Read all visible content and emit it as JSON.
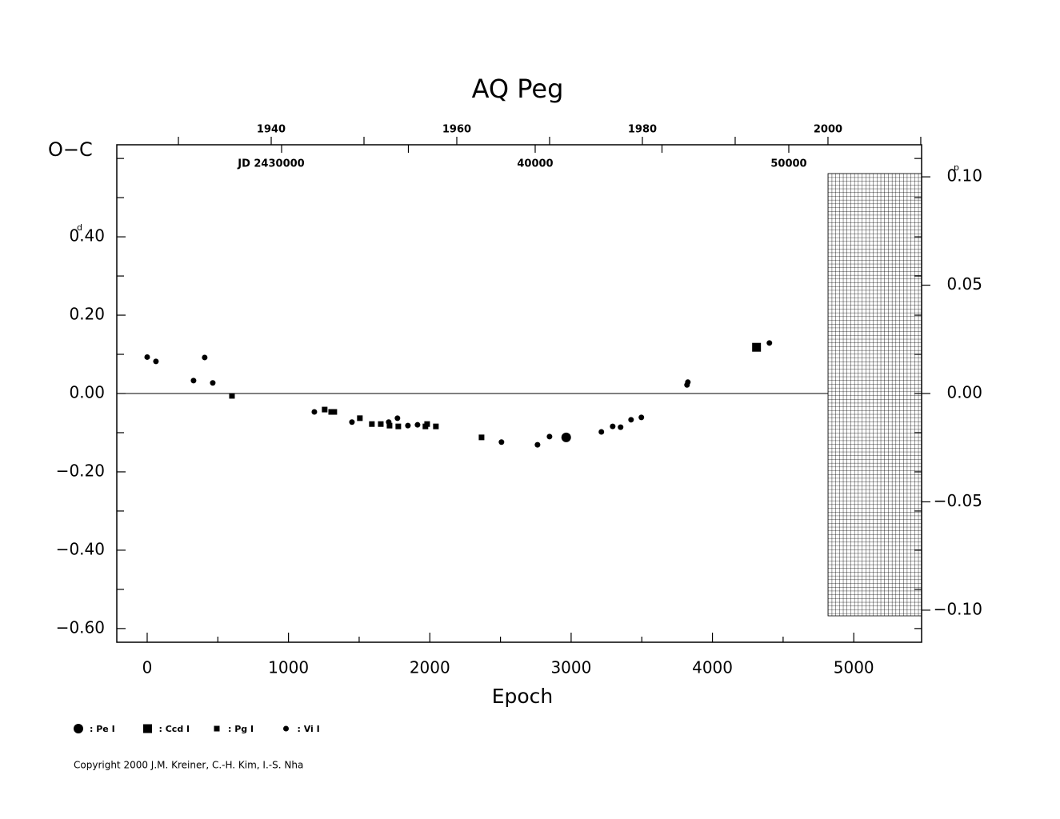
{
  "chart_data": {
    "type": "scatter",
    "title": "AQ Peg",
    "ylabel": "O−C",
    "xlabel": "Epoch",
    "y_unit": "d",
    "y2_unit": "p",
    "copyright": "Copyright 2000 J.M. Kreiner, C.-H. Kim, I.-S. Nha",
    "xlim": [
      -215,
      5480
    ],
    "xticks": [
      0,
      1000,
      2000,
      3000,
      4000,
      5000
    ],
    "xminorticks": [
      500,
      1500,
      2500,
      3500,
      4500
    ],
    "ylim": [
      -0.635,
      0.635
    ],
    "yticks": [
      {
        "value": -0.6,
        "label": "−0.60"
      },
      {
        "value": -0.4,
        "label": "−0.40"
      },
      {
        "value": -0.2,
        "label": "−0.20"
      },
      {
        "value": 0,
        "label": "0.00"
      },
      {
        "value": 0.2,
        "label": "0.20"
      },
      {
        "value": 0.4,
        "label": "0.40"
      }
    ],
    "yminorticks": [
      -0.5,
      -0.3,
      -0.1,
      0.1,
      0.3,
      0.5,
      0.6
    ],
    "y2lim": [
      -0.1148,
      0.1148
    ],
    "y2ticks": [
      {
        "value": -0.1,
        "label": "−0.10"
      },
      {
        "value": -0.05,
        "label": "−0.05"
      },
      {
        "value": 0,
        "label": "0.00"
      },
      {
        "value": 0.05,
        "label": "0.05"
      },
      {
        "value": 0.1,
        "label": "0.10"
      }
    ],
    "x2lim": [
      1923.36,
      2010.09
    ],
    "x2ticks": [
      1940,
      1960,
      1980,
      2000
    ],
    "x2minorticks": [
      1930,
      1950,
      1970,
      1990,
      2010
    ],
    "x3lim": [
      23502,
      55237
    ],
    "x3ticks": [
      {
        "value": 30000,
        "label": "JD  2430000"
      },
      {
        "value": 40000,
        "label": "40000"
      },
      {
        "value": 50000,
        "label": "50000"
      }
    ],
    "x3minorticks": [
      35000,
      45000
    ],
    "series": [
      {
        "name": ": Pe I",
        "marker": "circle",
        "size": 12,
        "color": "#000000",
        "x": [
          2965
        ],
        "values": [
          -0.112
        ]
      },
      {
        "name": ": Ccd I",
        "marker": "square",
        "size": 11,
        "color": "#000000",
        "x": [
          4312
        ],
        "values": [
          0.118
        ]
      },
      {
        "name": ": Pg I",
        "marker": "square",
        "size": 7,
        "color": "#000000",
        "x": [
          600,
          1256,
          1302,
          1324,
          1505,
          1590,
          1653,
          1715,
          1777,
          1969,
          1981,
          2043,
          2366
        ],
        "values": [
          -0.006,
          -0.041,
          -0.047,
          -0.047,
          -0.063,
          -0.078,
          -0.078,
          -0.082,
          -0.084,
          -0.084,
          -0.078,
          -0.084,
          -0.112
        ]
      },
      {
        "name": ": Vi I",
        "marker": "circle",
        "size": 7,
        "color": "#000000",
        "x": [
          0,
          62,
          328,
          407,
          464,
          1183,
          1449,
          1709,
          1771,
          1845,
          1913,
          2507,
          2762,
          2847,
          3214,
          3294,
          3350,
          3424,
          3497,
          3820,
          3826,
          4403
        ],
        "values": [
          0.093,
          0.082,
          0.033,
          0.092,
          0.027,
          -0.047,
          -0.073,
          -0.073,
          -0.063,
          -0.082,
          -0.08,
          -0.124,
          -0.131,
          -0.11,
          -0.098,
          -0.084,
          -0.086,
          -0.067,
          -0.061,
          0.022,
          0.029,
          0.129
        ]
      }
    ]
  }
}
